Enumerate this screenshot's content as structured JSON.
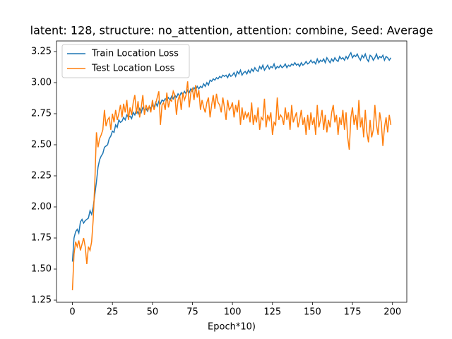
{
  "chart_data": {
    "type": "line",
    "title": "latent: 128, structure: no_attention, attention: combine, Seed: Average",
    "x_label": "Epoch*10)",
    "x": [
      0,
      1,
      2,
      3,
      4,
      5,
      6,
      7,
      8,
      9,
      10,
      11,
      12,
      13,
      14,
      15,
      16,
      17,
      18,
      19,
      20,
      21,
      22,
      23,
      24,
      25,
      26,
      27,
      28,
      29,
      30,
      31,
      32,
      33,
      34,
      35,
      36,
      37,
      38,
      39,
      40,
      41,
      42,
      43,
      44,
      45,
      46,
      47,
      48,
      49,
      50,
      51,
      52,
      53,
      54,
      55,
      56,
      57,
      58,
      59,
      60,
      61,
      62,
      63,
      64,
      65,
      66,
      67,
      68,
      69,
      70,
      71,
      72,
      73,
      74,
      75,
      76,
      77,
      78,
      79,
      80,
      81,
      82,
      83,
      84,
      85,
      86,
      87,
      88,
      89,
      90,
      91,
      92,
      93,
      94,
      95,
      96,
      97,
      98,
      99,
      100,
      101,
      102,
      103,
      104,
      105,
      106,
      107,
      108,
      109,
      110,
      111,
      112,
      113,
      114,
      115,
      116,
      117,
      118,
      119,
      120,
      121,
      122,
      123,
      124,
      125,
      126,
      127,
      128,
      129,
      130,
      131,
      132,
      133,
      134,
      135,
      136,
      137,
      138,
      139,
      140,
      141,
      142,
      143,
      144,
      145,
      146,
      147,
      148,
      149,
      150,
      151,
      152,
      153,
      154,
      155,
      156,
      157,
      158,
      159,
      160,
      161,
      162,
      163,
      164,
      165,
      166,
      167,
      168,
      169,
      170,
      171,
      172,
      173,
      174,
      175,
      176,
      177,
      178,
      179,
      180,
      181,
      182,
      183,
      184,
      185,
      186,
      187,
      188,
      189,
      190,
      191,
      192,
      193,
      194,
      195,
      196,
      197,
      198,
      199
    ],
    "series": [
      {
        "name": "Train Location Loss",
        "color": "#1f77b4",
        "values": [
          1.56,
          1.75,
          1.8,
          1.82,
          1.79,
          1.88,
          1.9,
          1.87,
          1.89,
          1.9,
          1.91,
          1.97,
          1.94,
          2.0,
          2.1,
          2.2,
          2.32,
          2.38,
          2.41,
          2.43,
          2.48,
          2.49,
          2.5,
          2.55,
          2.57,
          2.61,
          2.6,
          2.66,
          2.64,
          2.7,
          2.68,
          2.69,
          2.72,
          2.7,
          2.74,
          2.72,
          2.73,
          2.71,
          2.76,
          2.74,
          2.78,
          2.75,
          2.79,
          2.76,
          2.8,
          2.78,
          2.79,
          2.77,
          2.81,
          2.79,
          2.82,
          2.8,
          2.84,
          2.81,
          2.85,
          2.83,
          2.86,
          2.85,
          2.87,
          2.86,
          2.88,
          2.86,
          2.89,
          2.87,
          2.9,
          2.88,
          2.91,
          2.89,
          2.92,
          2.9,
          2.93,
          2.91,
          2.94,
          2.92,
          2.95,
          2.93,
          2.96,
          2.94,
          2.97,
          2.95,
          2.97,
          2.96,
          2.99,
          2.97,
          3.0,
          2.98,
          3.02,
          3.01,
          3.03,
          3.02,
          3.04,
          3.03,
          3.05,
          3.04,
          3.06,
          3.05,
          3.06,
          3.04,
          3.07,
          3.05,
          3.06,
          3.08,
          3.05,
          3.09,
          3.07,
          3.1,
          3.06,
          3.08,
          3.09,
          3.07,
          3.1,
          3.08,
          3.11,
          3.09,
          3.12,
          3.1,
          3.09,
          3.13,
          3.11,
          3.14,
          3.1,
          3.12,
          3.14,
          3.11,
          3.13,
          3.12,
          3.15,
          3.11,
          3.13,
          3.12,
          3.14,
          3.12,
          3.13,
          3.15,
          3.12,
          3.14,
          3.13,
          3.15,
          3.14,
          3.16,
          3.14,
          3.15,
          3.13,
          3.16,
          3.14,
          3.15,
          3.17,
          3.15,
          3.16,
          3.18,
          3.16,
          3.17,
          3.15,
          3.19,
          3.16,
          3.18,
          3.17,
          3.19,
          3.16,
          3.2,
          3.18,
          3.16,
          3.19,
          3.17,
          3.2,
          3.18,
          3.17,
          3.21,
          3.19,
          3.2,
          3.18,
          3.21,
          3.19,
          3.22,
          3.24,
          3.2,
          3.22,
          3.21,
          3.23,
          3.2,
          3.18,
          3.22,
          3.2,
          3.23,
          3.19,
          3.17,
          3.22,
          3.21,
          3.18,
          3.2,
          3.23,
          3.19,
          3.21,
          3.2,
          3.22,
          3.18,
          3.21,
          3.2,
          3.18,
          3.2
        ]
      },
      {
        "name": "Test Location Loss",
        "color": "#ff7f0e",
        "values": [
          1.33,
          1.62,
          1.72,
          1.68,
          1.73,
          1.65,
          1.7,
          1.75,
          1.68,
          1.54,
          1.68,
          1.65,
          1.72,
          1.9,
          2.2,
          2.6,
          2.48,
          2.55,
          2.58,
          2.62,
          2.78,
          2.65,
          2.7,
          2.72,
          2.62,
          2.75,
          2.68,
          2.78,
          2.7,
          2.75,
          2.82,
          2.72,
          2.83,
          2.76,
          2.86,
          2.7,
          2.8,
          2.74,
          2.84,
          2.9,
          2.75,
          2.85,
          2.72,
          2.8,
          2.9,
          2.74,
          2.82,
          2.78,
          2.81,
          2.76,
          2.86,
          2.78,
          2.83,
          2.88,
          2.93,
          2.66,
          2.82,
          2.84,
          2.78,
          2.92,
          2.8,
          2.86,
          2.85,
          2.93,
          2.9,
          2.74,
          2.86,
          2.9,
          2.78,
          2.92,
          2.86,
          2.9,
          3.01,
          2.8,
          2.92,
          2.95,
          2.86,
          2.98,
          2.88,
          2.94,
          2.78,
          2.86,
          2.8,
          2.76,
          2.84,
          2.88,
          2.72,
          2.82,
          2.9,
          2.79,
          2.91,
          2.84,
          2.82,
          2.76,
          2.88,
          2.8,
          2.7,
          2.86,
          2.78,
          2.8,
          2.84,
          2.72,
          2.82,
          2.76,
          2.86,
          2.66,
          2.8,
          2.7,
          2.76,
          2.72,
          2.76,
          2.68,
          2.84,
          2.66,
          2.74,
          2.68,
          2.8,
          2.62,
          2.72,
          2.7,
          2.87,
          2.64,
          2.74,
          2.7,
          2.76,
          2.58,
          2.68,
          2.66,
          2.88,
          2.7,
          2.74,
          2.72,
          2.66,
          2.8,
          2.7,
          2.76,
          2.62,
          2.82,
          2.68,
          2.72,
          2.76,
          2.64,
          2.7,
          2.78,
          2.66,
          2.72,
          2.58,
          2.74,
          2.62,
          2.76,
          2.66,
          2.72,
          2.58,
          2.82,
          2.64,
          2.7,
          2.78,
          2.62,
          2.74,
          2.6,
          2.7,
          2.64,
          2.76,
          2.82,
          2.68,
          2.74,
          2.58,
          2.72,
          2.66,
          2.78,
          2.62,
          2.76,
          2.56,
          2.46,
          2.72,
          2.8,
          2.66,
          2.74,
          2.62,
          2.86,
          2.64,
          2.72,
          2.56,
          2.78,
          2.6,
          2.52,
          2.7,
          2.56,
          2.62,
          2.82,
          2.66,
          2.58,
          2.76,
          2.68,
          2.49,
          2.64,
          2.72,
          2.6,
          2.74,
          2.66
        ]
      }
    ],
    "xlim": [
      -9.95,
      208.95
    ],
    "ylim": [
      1.233,
      3.335
    ],
    "xticks": [
      0,
      25,
      50,
      75,
      100,
      125,
      150,
      175,
      200
    ],
    "yticks": [
      1.25,
      {
        "value": 1.5,
        "label": "1.50"
      },
      1.75,
      {
        "value": 2.0,
        "label": "2.00"
      },
      2.25,
      {
        "value": 2.5,
        "label": "2.50"
      },
      2.75,
      {
        "value": 3.0,
        "label": "3.00"
      },
      3.25
    ],
    "grid": false,
    "legend": "upper-left"
  }
}
